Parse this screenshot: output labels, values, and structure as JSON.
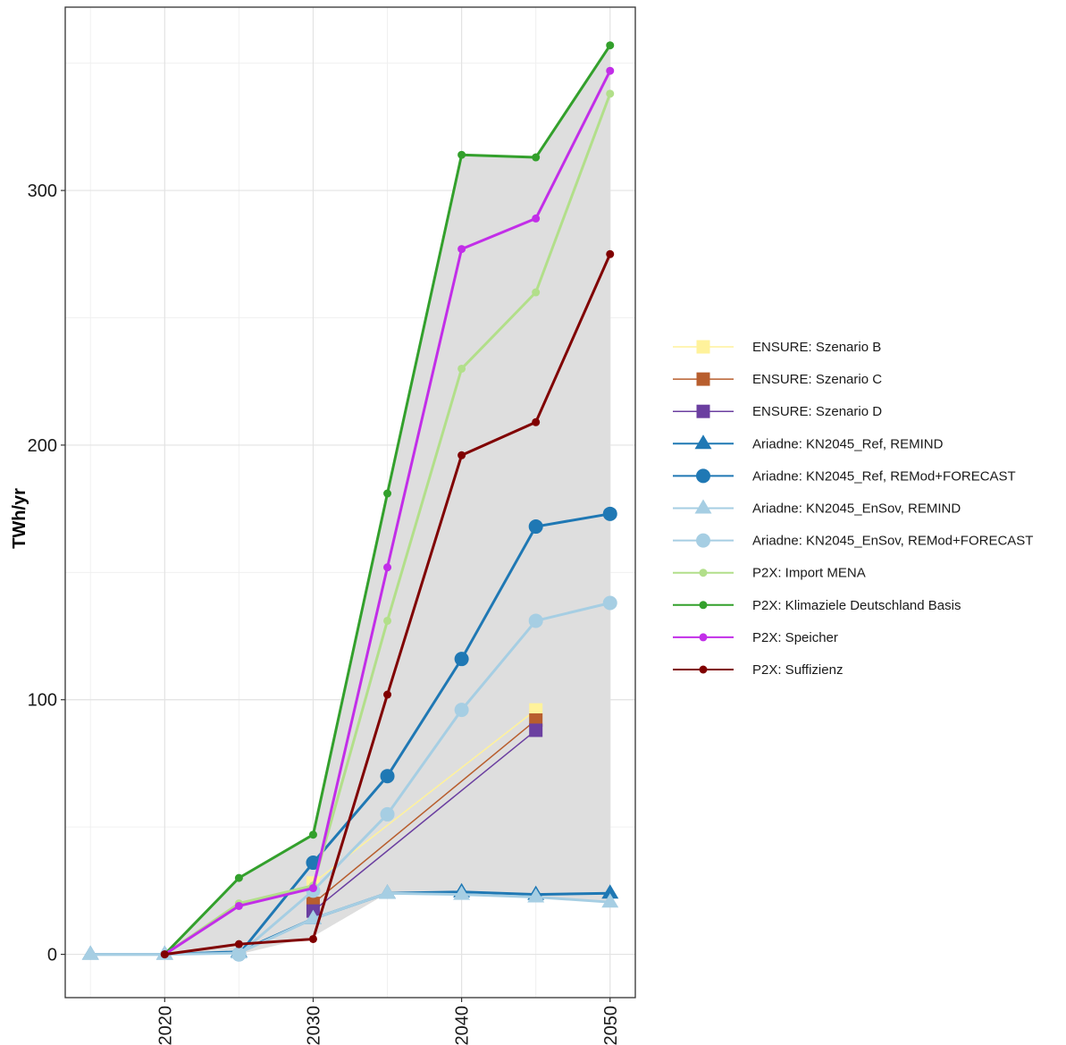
{
  "chart_data": {
    "type": "line",
    "ylabel": "TWh/yr",
    "xlabel": "",
    "xlim": [
      2013.3,
      2051.7
    ],
    "ylim": [
      -17,
      372
    ],
    "x_ticks": [
      2020,
      2030,
      2040,
      2050
    ],
    "y_ticks": [
      0,
      100,
      200,
      300
    ],
    "x_tick_labels": [
      "2020",
      "2030",
      "2040",
      "2050"
    ],
    "y_tick_labels": [
      "0",
      "100",
      "200",
      "300"
    ],
    "grid": true,
    "legend_position": "right",
    "range_band": {
      "color": "#dedede",
      "x": [
        2015,
        2020,
        2025,
        2030,
        2035,
        2040,
        2045,
        2050
      ],
      "lower": [
        0,
        0,
        0,
        7,
        24,
        24,
        23,
        20
      ],
      "upper": [
        0,
        0,
        30,
        47,
        181,
        314,
        313,
        357
      ]
    },
    "series": [
      {
        "name": "ENSURE: Szenario B",
        "color": "#fff29b",
        "marker": "square",
        "width": 1.5,
        "x": [
          2030,
          2045
        ],
        "values": [
          28,
          96
        ]
      },
      {
        "name": "ENSURE: Szenario C",
        "color": "#b85e2e",
        "marker": "square",
        "width": 1.5,
        "x": [
          2030,
          2045
        ],
        "values": [
          20,
          92
        ]
      },
      {
        "name": "ENSURE: Szenario D",
        "color": "#6b3fa0",
        "marker": "square",
        "width": 1.5,
        "x": [
          2030,
          2045
        ],
        "values": [
          17,
          88
        ]
      },
      {
        "name": "Ariadne: KN2045_Ref, REMIND",
        "color": "#1f78b4",
        "marker": "triangle",
        "width": 3,
        "x": [
          2015,
          2020,
          2025,
          2030,
          2035,
          2040,
          2045,
          2050
        ],
        "values": [
          0,
          0,
          1,
          14,
          24,
          24.5,
          23.5,
          24
        ]
      },
      {
        "name": "Ariadne: KN2045_Ref, REMod+FORECAST",
        "color": "#1f78b4",
        "marker": "circle",
        "width": 3,
        "x": [
          2025,
          2030,
          2035,
          2040,
          2045,
          2050
        ],
        "values": [
          0,
          36,
          70,
          116,
          168,
          173
        ]
      },
      {
        "name": "Ariadne: KN2045_EnSov, REMIND",
        "color": "#a6cee3",
        "marker": "triangle",
        "width": 3,
        "x": [
          2015,
          2020,
          2025,
          2030,
          2035,
          2040,
          2045,
          2050
        ],
        "values": [
          0,
          0,
          0.5,
          14,
          24,
          23.5,
          22.5,
          20.5
        ]
      },
      {
        "name": "Ariadne: KN2045_EnSov, REMod+FORECAST",
        "color": "#a6cee3",
        "marker": "circle",
        "width": 3,
        "x": [
          2025,
          2030,
          2035,
          2040,
          2045,
          2050
        ],
        "values": [
          0,
          25,
          55,
          96,
          131,
          138
        ]
      },
      {
        "name": "P2X: Import MENA",
        "color": "#b2df8a",
        "marker": "point",
        "width": 3,
        "x": [
          2020,
          2025,
          2030,
          2035,
          2040,
          2045,
          2050
        ],
        "values": [
          0,
          20,
          27,
          131,
          230,
          260,
          338
        ]
      },
      {
        "name": "P2X: Klimaziele Deutschland Basis",
        "color": "#33a02c",
        "marker": "point",
        "width": 3,
        "x": [
          2020,
          2025,
          2030,
          2035,
          2040,
          2045,
          2050
        ],
        "values": [
          0,
          30,
          47,
          181,
          314,
          313,
          357
        ]
      },
      {
        "name": "P2X: Speicher",
        "color": "#c22ee8",
        "marker": "point",
        "width": 3,
        "x": [
          2020,
          2025,
          2030,
          2035,
          2040,
          2045,
          2050
        ],
        "values": [
          0,
          19,
          26,
          152,
          277,
          289,
          347
        ]
      },
      {
        "name": "P2X: Suffizienz",
        "color": "#800000",
        "marker": "point",
        "width": 3,
        "x": [
          2020,
          2025,
          2030,
          2035,
          2040,
          2045,
          2050
        ],
        "values": [
          0,
          4,
          6,
          102,
          196,
          209,
          275
        ]
      }
    ]
  }
}
